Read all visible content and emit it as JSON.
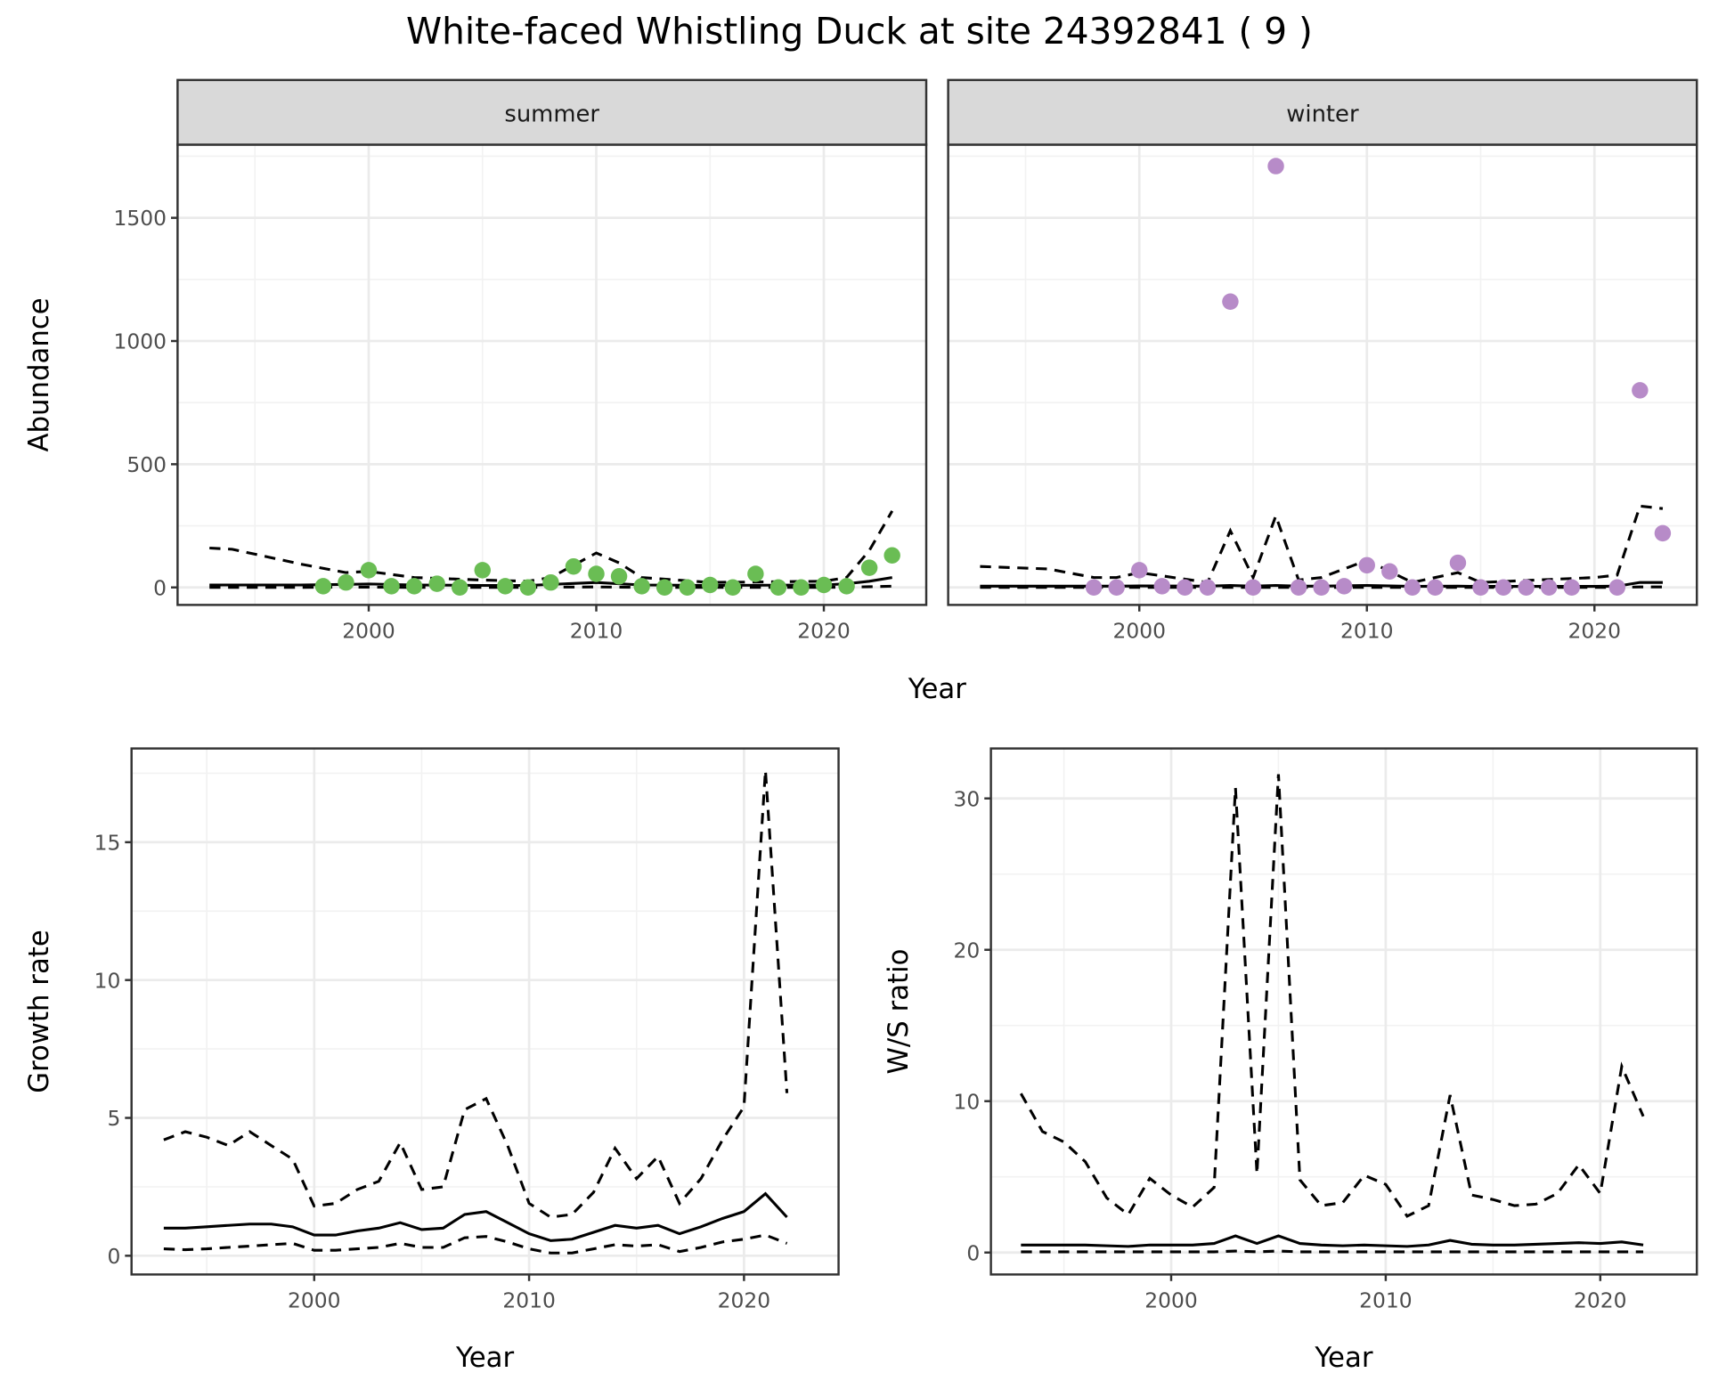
{
  "title": "White-faced Whistling Duck at site 24392841 ( 9 )",
  "colors": {
    "summer": "#6abd54",
    "winter": "#b78bc8",
    "line": "#000000",
    "strip": "#d9d9d9"
  },
  "chart_data": [
    {
      "type": "scatter",
      "facet": "summer",
      "xlabel": "Year",
      "ylabel": "Abundance",
      "xlim": [
        1991.6,
        2024.5
      ],
      "ylim": [
        -71,
        1797
      ],
      "xticks": [
        2000,
        2010,
        2020
      ],
      "yticks": [
        0,
        500,
        1000,
        1500
      ],
      "points": {
        "x": [
          1998,
          1999,
          2000,
          2001,
          2002,
          2003,
          2004,
          2005,
          2006,
          2007,
          2008,
          2009,
          2010,
          2011,
          2012,
          2013,
          2014,
          2015,
          2016,
          2017,
          2018,
          2019,
          2020,
          2021,
          2022,
          2023
        ],
        "y": [
          5,
          20,
          70,
          5,
          5,
          15,
          0,
          70,
          5,
          0,
          20,
          85,
          55,
          45,
          5,
          0,
          0,
          10,
          0,
          55,
          0,
          0,
          10,
          5,
          80,
          130
        ]
      },
      "lines": {
        "x": [
          1993,
          1994,
          1997,
          1999,
          2000,
          2002,
          2005,
          2007,
          2008,
          2010,
          2011,
          2012,
          2015,
          2020,
          2021,
          2022,
          2023
        ],
        "upper": [
          160,
          155,
          95,
          60,
          65,
          40,
          30,
          25,
          40,
          140,
          100,
          40,
          20,
          25,
          40,
          150,
          310
        ],
        "mid": [
          10,
          10,
          10,
          12,
          14,
          10,
          8,
          8,
          12,
          20,
          15,
          10,
          8,
          10,
          15,
          25,
          40
        ],
        "lower": [
          0,
          0,
          0,
          1,
          1,
          0,
          0,
          0,
          1,
          2,
          1,
          0,
          0,
          0,
          1,
          3,
          5
        ]
      }
    },
    {
      "type": "scatter",
      "facet": "winter",
      "xlabel": "Year",
      "ylabel": "Abundance",
      "xlim": [
        1991.6,
        2024.5
      ],
      "ylim": [
        -71,
        1797
      ],
      "xticks": [
        2000,
        2010,
        2020
      ],
      "yticks": [
        0,
        500,
        1000,
        1500
      ],
      "points": {
        "x": [
          1998,
          1999,
          2000,
          2001,
          2002,
          2003,
          2004,
          2005,
          2006,
          2007,
          2008,
          2009,
          2010,
          2011,
          2012,
          2013,
          2014,
          2015,
          2016,
          2017,
          2018,
          2019,
          2021,
          2022,
          2023
        ],
        "y": [
          0,
          0,
          70,
          5,
          0,
          0,
          1160,
          0,
          1710,
          0,
          0,
          5,
          90,
          65,
          0,
          0,
          100,
          0,
          0,
          0,
          0,
          0,
          0,
          800,
          220
        ]
      },
      "lines": {
        "x": [
          1993,
          1996,
          1998,
          1999,
          2000,
          2003,
          2004,
          2005,
          2006,
          2007,
          2008,
          2010,
          2012,
          2014,
          2015,
          2020,
          2021,
          2022,
          2023
        ],
        "upper": [
          85,
          75,
          40,
          40,
          60,
          20,
          230,
          40,
          290,
          30,
          40,
          110,
          20,
          60,
          20,
          40,
          50,
          330,
          320
        ],
        "mid": [
          5,
          5,
          5,
          5,
          6,
          5,
          8,
          5,
          8,
          5,
          5,
          8,
          4,
          5,
          4,
          4,
          5,
          20,
          20
        ],
        "lower": [
          0,
          0,
          0,
          0,
          0,
          0,
          0,
          0,
          0,
          0,
          0,
          0,
          0,
          0,
          0,
          0,
          0,
          2,
          2
        ]
      }
    },
    {
      "type": "line",
      "xlabel": "Year",
      "ylabel": "Growth rate",
      "xlim": [
        1991.5,
        2024.4
      ],
      "ylim": [
        -0.68,
        18.4
      ],
      "xticks": [
        2000,
        2010,
        2020
      ],
      "yticks": [
        0,
        5,
        10,
        15
      ],
      "lines": {
        "x": [
          1993,
          1994,
          1995,
          1996,
          1997,
          1998,
          1999,
          2000,
          2001,
          2002,
          2003,
          2004,
          2005,
          2006,
          2007,
          2008,
          2009,
          2010,
          2011,
          2012,
          2013,
          2014,
          2015,
          2016,
          2017,
          2018,
          2019,
          2020,
          2021,
          2022
        ],
        "upper": [
          4.2,
          4.5,
          4.3,
          4.0,
          4.5,
          4.0,
          3.5,
          1.8,
          1.9,
          2.4,
          2.7,
          4.1,
          2.4,
          2.5,
          5.3,
          5.7,
          4.0,
          1.9,
          1.4,
          1.5,
          2.3,
          3.9,
          2.8,
          3.6,
          1.9,
          2.8,
          4.2,
          5.4,
          17.6,
          5.9
        ],
        "mid": [
          1.0,
          1.0,
          1.05,
          1.1,
          1.15,
          1.15,
          1.05,
          0.75,
          0.75,
          0.9,
          1.0,
          1.2,
          0.95,
          1.0,
          1.5,
          1.6,
          1.2,
          0.8,
          0.55,
          0.6,
          0.85,
          1.1,
          1.0,
          1.1,
          0.8,
          1.05,
          1.35,
          1.6,
          2.25,
          1.4
        ],
        "lower": [
          0.25,
          0.22,
          0.25,
          0.3,
          0.35,
          0.4,
          0.45,
          0.2,
          0.2,
          0.25,
          0.3,
          0.45,
          0.3,
          0.3,
          0.65,
          0.7,
          0.5,
          0.25,
          0.1,
          0.1,
          0.25,
          0.4,
          0.35,
          0.4,
          0.15,
          0.3,
          0.5,
          0.6,
          0.75,
          0.45
        ]
      }
    },
    {
      "type": "line",
      "xlabel": "Year",
      "ylabel": "W/S ratio",
      "xlim": [
        1991.6,
        2024.5
      ],
      "ylim": [
        -1.45,
        33.3
      ],
      "xticks": [
        2000,
        2010,
        2020
      ],
      "yticks": [
        0,
        10,
        20,
        30
      ],
      "lines": {
        "x": [
          1993,
          1994,
          1995,
          1996,
          1997,
          1998,
          1999,
          2000,
          2001,
          2002,
          2003,
          2004,
          2005,
          2006,
          2007,
          2008,
          2009,
          2010,
          2011,
          2012,
          2013,
          2014,
          2015,
          2016,
          2017,
          2018,
          2019,
          2020,
          2021,
          2022
        ],
        "upper": [
          10.5,
          8,
          7.3,
          6,
          3.6,
          2.5,
          4.9,
          3.8,
          3.0,
          4.3,
          30.7,
          5.2,
          31.6,
          4.8,
          3.1,
          3.3,
          5.1,
          4.5,
          2.4,
          3.1,
          10.4,
          3.8,
          3.5,
          3.1,
          3.2,
          3.9,
          5.8,
          3.9,
          12.3,
          9.0
        ],
        "mid": [
          0.5,
          0.5,
          0.5,
          0.5,
          0.45,
          0.4,
          0.5,
          0.5,
          0.5,
          0.6,
          1.1,
          0.6,
          1.1,
          0.6,
          0.5,
          0.45,
          0.5,
          0.45,
          0.4,
          0.5,
          0.8,
          0.55,
          0.5,
          0.5,
          0.55,
          0.6,
          0.65,
          0.6,
          0.7,
          0.5
        ],
        "lower": [
          0.05,
          0.05,
          0.05,
          0.05,
          0.05,
          0.05,
          0.05,
          0.05,
          0.05,
          0.05,
          0.1,
          0.05,
          0.1,
          0.05,
          0.05,
          0.05,
          0.05,
          0.05,
          0.05,
          0.05,
          0.05,
          0.05,
          0.05,
          0.05,
          0.05,
          0.05,
          0.05,
          0.05,
          0.05,
          0.05
        ]
      }
    }
  ]
}
